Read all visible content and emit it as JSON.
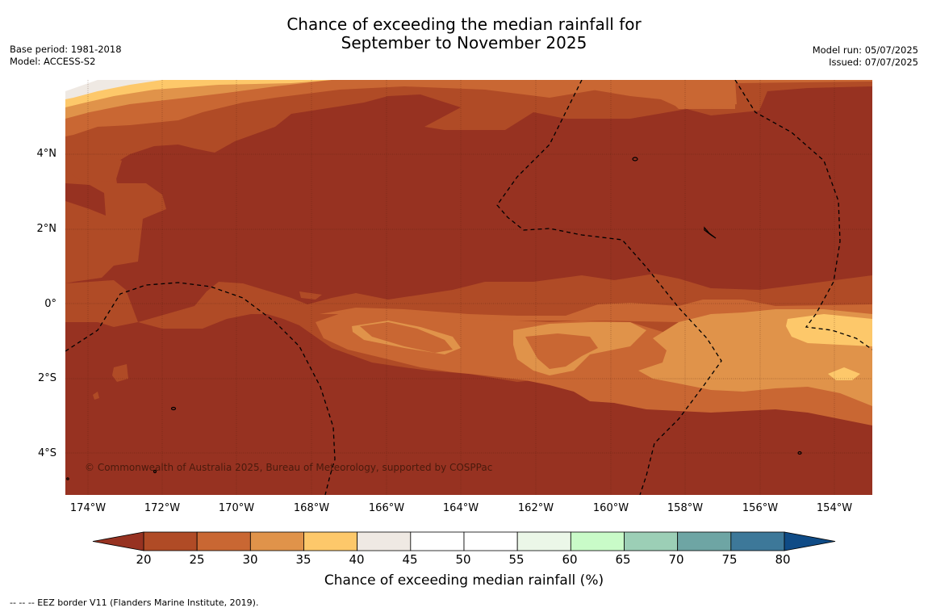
{
  "title": {
    "line1": "Chance of exceeding the median rainfall for",
    "line2": "September to November 2025"
  },
  "meta_left": {
    "base_period": "Base period: 1981-2018",
    "model": "Model: ACCESS-S2"
  },
  "meta_right": {
    "model_run": "Model run: 05/07/2025",
    "issued": "Issued: 07/07/2025"
  },
  "map": {
    "lat_labels": [
      "4°N",
      "2°N",
      "0°",
      "2°S",
      "4°S"
    ],
    "lon_labels": [
      "174°W",
      "172°W",
      "170°W",
      "168°W",
      "166°W",
      "164°W",
      "162°W",
      "160°W",
      "158°W",
      "156°W",
      "154°W"
    ],
    "copyright": "© Commonwealth of Australia 2025, Bureau of Meteorology, supported by COSPPac"
  },
  "colorbar": {
    "ticks": [
      "20",
      "25",
      "30",
      "35",
      "40",
      "45",
      "50",
      "55",
      "60",
      "65",
      "70",
      "75",
      "80"
    ],
    "colors": [
      "#b04b26",
      "#c96733",
      "#e0934a",
      "#fdc86a",
      "#efe9e3",
      "#ffffff",
      "#ffffff",
      "#ebf7e8",
      "#c9fbc8",
      "#9ccfb6",
      "#6ea5a4",
      "#3d7899"
    ],
    "low_extend_color": "#973221",
    "high_extend_color": "#0f4b86",
    "label": "Chance of exceeding median rainfall (%)"
  },
  "footnote": "--  --  -- EEZ border V11 (Flanders Marine Institute, 2019)."
}
